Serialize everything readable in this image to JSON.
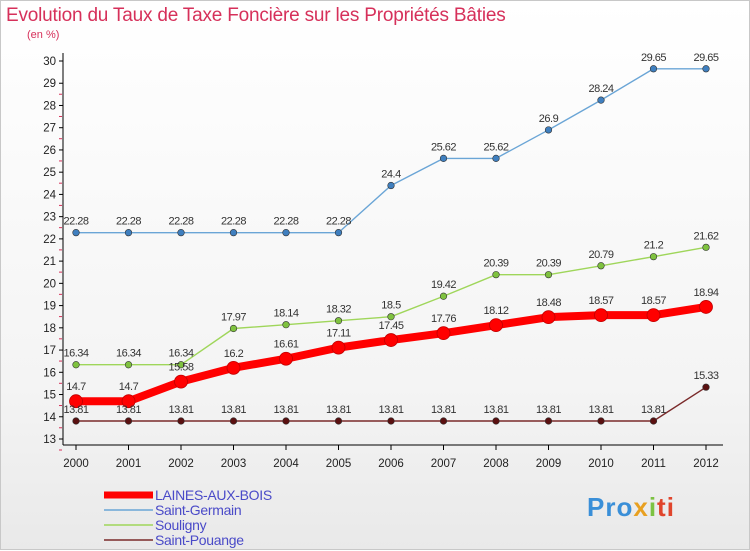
{
  "chart_data": {
    "type": "line",
    "title": "Evolution du Taux de Taxe Foncière sur les Propriétés Bâties",
    "ylabel": "(en %)",
    "xlabel": "",
    "x": [
      "2000",
      "2001",
      "2002",
      "2003",
      "2004",
      "2005",
      "2006",
      "2007",
      "2008",
      "2009",
      "2010",
      "2011",
      "2012"
    ],
    "ylim": [
      13,
      30
    ],
    "yticks": [
      "13",
      "14",
      "15",
      "16",
      "17",
      "18",
      "19",
      "20",
      "21",
      "22",
      "23",
      "24",
      "25",
      "26",
      "27",
      "28",
      "29",
      "30"
    ],
    "grid": false,
    "legend_position": "bottom-left",
    "series": [
      {
        "name": "LAINES-AUX-BOIS",
        "color": "#ff0000",
        "marker_color": "#ff0000",
        "values": [
          14.7,
          14.7,
          15.58,
          16.2,
          16.61,
          17.11,
          17.45,
          17.76,
          18.12,
          18.48,
          18.57,
          18.57,
          18.94
        ],
        "labels": [
          "14.7",
          "14.7",
          "15.58",
          "16.2",
          "16.61",
          "17.11",
          "17.45",
          "17.76",
          "18.12",
          "18.48",
          "18.57",
          "18.57",
          "18.94"
        ]
      },
      {
        "name": "Saint-Germain",
        "color": "#6aa5d6",
        "marker_color": "#3f7fbf",
        "values": [
          22.28,
          22.28,
          22.28,
          22.28,
          22.28,
          22.28,
          24.4,
          25.62,
          25.62,
          26.9,
          28.24,
          29.65,
          29.65
        ],
        "labels": [
          "22.28",
          "22.28",
          "22.28",
          "22.28",
          "22.28",
          "22.28",
          "24.4",
          "25.62",
          "25.62",
          "26.9",
          "28.24",
          "29.65",
          "29.65"
        ]
      },
      {
        "name": "Souligny",
        "color": "#9fd65a",
        "marker_color": "#7fc23f",
        "values": [
          16.34,
          16.34,
          16.34,
          17.97,
          18.14,
          18.32,
          18.5,
          19.42,
          20.39,
          20.39,
          20.79,
          21.2,
          21.62
        ],
        "labels": [
          "16.34",
          "16.34",
          "16.34",
          "17.97",
          "18.14",
          "18.32",
          "18.5",
          "19.42",
          "20.39",
          "20.39",
          "20.79",
          "21.2",
          "21.62"
        ]
      },
      {
        "name": "Saint-Pouange",
        "color": "#7a2a2a",
        "marker_color": "#5a1010",
        "values": [
          13.81,
          13.81,
          13.81,
          13.81,
          13.81,
          13.81,
          13.81,
          13.81,
          13.81,
          13.81,
          13.81,
          13.81,
          15.33
        ],
        "labels": [
          "13.81",
          "13.81",
          "13.81",
          "13.81",
          "13.81",
          "13.81",
          "13.81",
          "13.81",
          "13.81",
          "13.81",
          "13.81",
          "13.81",
          "15.33"
        ]
      }
    ]
  },
  "logo": {
    "p1": "Pro",
    "p2": "x",
    "p3": "i",
    "p4": "ti"
  },
  "colors": {
    "title": "#d6305a",
    "axis": "#000000",
    "legend_text": "#4a4ac8"
  }
}
